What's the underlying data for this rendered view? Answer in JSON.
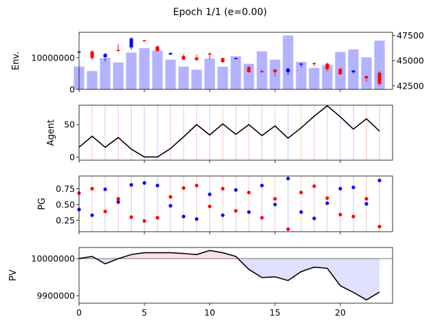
{
  "chart_data": [
    {
      "type": "bar+candlestick",
      "title": "Epoch 1/1 (e=0.00)",
      "ylabel": "Env.",
      "ylim": [
        0,
        18000000
      ],
      "yticks": [
        0,
        10000000
      ],
      "ytick_labels": [
        "0",
        "10000000"
      ],
      "y2lim": [
        42150,
        47800
      ],
      "y2ticks": [
        42500,
        45000,
        47500
      ],
      "y2tick_labels": [
        "42500",
        "45000",
        "47500"
      ],
      "xlim": [
        0,
        24
      ],
      "bar_color": "#b3b3ff",
      "volume": [
        7200000,
        5800000,
        9900000,
        8500000,
        11600000,
        13000000,
        12300000,
        9400000,
        7200000,
        6200000,
        9700000,
        7200000,
        10400000,
        8100000,
        12000000,
        9400000,
        17000000,
        8700000,
        6800000,
        7700000,
        11800000,
        12600000,
        10100000,
        15400000
      ],
      "ohlc": [
        {
          "x": 0,
          "open": 45800,
          "high": 46000,
          "low": 45650,
          "close": 45900
        },
        {
          "x": 1,
          "open": 45900,
          "high": 46050,
          "low": 45100,
          "close": 45250
        },
        {
          "x": 2,
          "open": 45350,
          "high": 45750,
          "low": 44900,
          "close": 45650
        },
        {
          "x": 3,
          "open": 46050,
          "high": 46650,
          "low": 45900,
          "close": 46000
        },
        {
          "x": 4,
          "open": 46300,
          "high": 47300,
          "low": 46100,
          "close": 47200
        },
        {
          "x": 5,
          "open": 47000,
          "high": 47050,
          "low": 46900,
          "close": 46950
        },
        {
          "x": 6,
          "open": 46400,
          "high": 46500,
          "low": 45900,
          "close": 45950
        },
        {
          "x": 7,
          "open": 45600,
          "high": 45800,
          "low": 45550,
          "close": 45750
        },
        {
          "x": 8,
          "open": 45450,
          "high": 45650,
          "low": 45050,
          "close": 45100
        },
        {
          "x": 9,
          "open": 45300,
          "high": 45600,
          "low": 45000,
          "close": 45050
        },
        {
          "x": 10,
          "open": 45700,
          "high": 45800,
          "low": 45100,
          "close": 45650
        },
        {
          "x": 11,
          "open": 45250,
          "high": 45300,
          "low": 44800,
          "close": 44850
        },
        {
          "x": 12,
          "open": 45200,
          "high": 45300,
          "low": 45150,
          "close": 45250
        },
        {
          "x": 13,
          "open": 44350,
          "high": 44500,
          "low": 43800,
          "close": 43850
        },
        {
          "x": 14,
          "open": 43950,
          "high": 44100,
          "low": 43800,
          "close": 43850
        },
        {
          "x": 15,
          "open": 44100,
          "high": 44200,
          "low": 43450,
          "close": 43850
        },
        {
          "x": 16,
          "open": 43850,
          "high": 44250,
          "low": 43600,
          "close": 44200
        },
        {
          "x": 17,
          "open": 44650,
          "high": 44750,
          "low": 44350,
          "close": 44700
        },
        {
          "x": 18,
          "open": 44750,
          "high": 44850,
          "low": 44450,
          "close": 44700
        },
        {
          "x": 19,
          "open": 44700,
          "high": 44800,
          "low": 43950,
          "close": 44150
        },
        {
          "x": 20,
          "open": 44200,
          "high": 44250,
          "low": 43550,
          "close": 43650
        },
        {
          "x": 21,
          "open": 43850,
          "high": 44100,
          "low": 43700,
          "close": 44000
        },
        {
          "x": 22,
          "open": 43450,
          "high": 43550,
          "low": 42900,
          "close": 43250
        },
        {
          "x": 23,
          "open": 43800,
          "high": 44000,
          "low": 42500,
          "close": 42700
        }
      ]
    },
    {
      "type": "line",
      "ylabel": "Agent",
      "ylim": [
        -5,
        80
      ],
      "yticks": [
        0,
        50
      ],
      "ytick_labels": [
        "0",
        "50"
      ],
      "xlim": [
        0,
        24
      ],
      "line_color": "#000000",
      "x": [
        0,
        1,
        2,
        3,
        4,
        5,
        6,
        7,
        8,
        9,
        10,
        11,
        12,
        13,
        14,
        15,
        16,
        17,
        18,
        19,
        20,
        21,
        22,
        23
      ],
      "values": [
        15,
        32,
        15,
        30,
        12,
        0,
        0,
        13,
        31,
        50,
        34,
        51,
        35,
        50,
        33,
        48,
        29,
        45,
        63,
        79,
        62,
        43,
        59,
        40
      ],
      "markers": [
        "blue",
        "red",
        "blue",
        "red",
        "blue",
        "blue",
        "blue",
        "red",
        "red",
        "red",
        "blue",
        "red",
        "blue",
        "red",
        "blue",
        "red",
        "blue",
        "red",
        "red",
        "red",
        "blue",
        "blue",
        "red",
        "blue"
      ]
    },
    {
      "type": "scatter",
      "ylabel": "PG",
      "ylim": [
        0.07,
        0.95
      ],
      "yticks": [
        0.25,
        0.5,
        0.75
      ],
      "ytick_labels": [
        "0.25",
        "0.50",
        "0.75"
      ],
      "xlim": [
        0,
        24
      ],
      "series": [
        {
          "color": "blue",
          "points": [
            [
              0,
              0.42
            ],
            [
              1,
              0.33
            ],
            [
              2,
              0.74
            ],
            [
              3,
              0.54
            ],
            [
              4,
              0.81
            ],
            [
              5,
              0.84
            ],
            [
              6,
              0.8
            ],
            [
              7,
              0.48
            ],
            [
              8,
              0.31
            ],
            [
              9,
              0.27
            ],
            [
              10,
              0.66
            ],
            [
              11,
              0.33
            ],
            [
              12,
              0.73
            ],
            [
              13,
              0.38
            ],
            [
              14,
              0.8
            ],
            [
              15,
              0.5
            ],
            [
              16,
              0.91
            ],
            [
              17,
              0.38
            ],
            [
              18,
              0.28
            ],
            [
              19,
              0.52
            ],
            [
              20,
              0.75
            ],
            [
              21,
              0.77
            ],
            [
              22,
              0.51
            ],
            [
              23,
              0.88
            ]
          ]
        },
        {
          "color": "red",
          "points": [
            [
              0,
              0.68
            ],
            [
              1,
              0.75
            ],
            [
              2,
              0.39
            ],
            [
              3,
              0.59
            ],
            [
              4,
              0.3
            ],
            [
              5,
              0.24
            ],
            [
              6,
              0.29
            ],
            [
              7,
              0.62
            ],
            [
              8,
              0.76
            ],
            [
              9,
              0.8
            ],
            [
              10,
              0.47
            ],
            [
              11,
              0.75
            ],
            [
              12,
              0.4
            ],
            [
              13,
              0.69
            ],
            [
              14,
              0.29
            ],
            [
              15,
              0.59
            ],
            [
              16,
              0.11
            ],
            [
              17,
              0.69
            ],
            [
              18,
              0.79
            ],
            [
              19,
              0.6
            ],
            [
              20,
              0.34
            ],
            [
              21,
              0.31
            ],
            [
              22,
              0.59
            ],
            [
              23,
              0.15
            ]
          ]
        }
      ]
    },
    {
      "type": "area",
      "ylabel": "PV",
      "ylim": [
        9880000,
        10030000
      ],
      "yticks": [
        9900000,
        10000000
      ],
      "ytick_labels": [
        "9900000",
        "10000000"
      ],
      "baseline": 10000000,
      "xlim": [
        0,
        24
      ],
      "xticks": [
        0,
        5,
        10,
        15,
        20
      ],
      "xtick_labels": [
        "0",
        "5",
        "10",
        "15",
        "20"
      ],
      "line_color": "#000000",
      "above_fill": "#ffe0e0",
      "below_fill": "#e0e0ff",
      "x": [
        0,
        1,
        2,
        3,
        4,
        5,
        6,
        7,
        8,
        9,
        10,
        11,
        12,
        13,
        14,
        15,
        16,
        17,
        18,
        19,
        20,
        21,
        22,
        23
      ],
      "values": [
        10000000,
        10006000,
        9986000,
        10000000,
        10011000,
        10016000,
        10016000,
        10016000,
        10014000,
        10011000,
        10022000,
        10016000,
        10006000,
        9971000,
        9949000,
        9951000,
        9941000,
        9965000,
        9977000,
        9974000,
        9927000,
        9909000,
        9889000,
        9910000
      ]
    }
  ]
}
